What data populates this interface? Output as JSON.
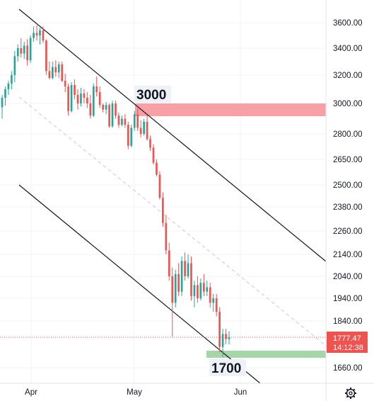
{
  "chart_data": {
    "type": "candlestick",
    "y_axis_ticks": [
      "3600.00",
      "3400.00",
      "3200.00",
      "3000.00",
      "2800.00",
      "2650.00",
      "2500.00",
      "2380.00",
      "2260.00",
      "2140.00",
      "2040.00",
      "1940.00",
      "1840.00",
      "1660.00"
    ],
    "x_axis_ticks": [
      "Apr",
      "May",
      "Jun"
    ],
    "annotations": {
      "resistance_label": "3000",
      "support_label": "1700"
    },
    "last_price": "1777.47",
    "countdown": "14:12:38",
    "colors": {
      "up": "#26a69a",
      "down": "#ef5350",
      "resistance_zone": "#f7a1a6",
      "support_zone": "#a5d6a7",
      "price_tag": "#ef5350"
    },
    "candles": [
      {
        "o": 2975,
        "h": 3060,
        "l": 2900,
        "c": 3040
      },
      {
        "o": 3040,
        "h": 3120,
        "l": 2985,
        "c": 3100
      },
      {
        "o": 3100,
        "h": 3160,
        "l": 3060,
        "c": 3140
      },
      {
        "o": 3140,
        "h": 3230,
        "l": 3100,
        "c": 3200
      },
      {
        "o": 3200,
        "h": 3380,
        "l": 3150,
        "c": 3340
      },
      {
        "o": 3340,
        "h": 3430,
        "l": 3300,
        "c": 3400
      },
      {
        "o": 3400,
        "h": 3480,
        "l": 3330,
        "c": 3360
      },
      {
        "o": 3360,
        "h": 3450,
        "l": 3320,
        "c": 3420
      },
      {
        "o": 3420,
        "h": 3470,
        "l": 3270,
        "c": 3310
      },
      {
        "o": 3310,
        "h": 3500,
        "l": 3290,
        "c": 3480
      },
      {
        "o": 3480,
        "h": 3570,
        "l": 3450,
        "c": 3520
      },
      {
        "o": 3520,
        "h": 3580,
        "l": 3460,
        "c": 3500
      },
      {
        "o": 3500,
        "h": 3560,
        "l": 3430,
        "c": 3540
      },
      {
        "o": 3540,
        "h": 3570,
        "l": 3440,
        "c": 3460
      },
      {
        "o": 3460,
        "h": 3470,
        "l": 3200,
        "c": 3230
      },
      {
        "o": 3230,
        "h": 3300,
        "l": 3170,
        "c": 3180
      },
      {
        "o": 3180,
        "h": 3300,
        "l": 3170,
        "c": 3260
      },
      {
        "o": 3260,
        "h": 3310,
        "l": 3190,
        "c": 3220
      },
      {
        "o": 3220,
        "h": 3300,
        "l": 3180,
        "c": 3280
      },
      {
        "o": 3280,
        "h": 3300,
        "l": 3150,
        "c": 3160
      },
      {
        "o": 3160,
        "h": 3210,
        "l": 3080,
        "c": 3120
      },
      {
        "o": 3120,
        "h": 3140,
        "l": 2920,
        "c": 2950
      },
      {
        "o": 2950,
        "h": 3150,
        "l": 2940,
        "c": 3130
      },
      {
        "o": 3130,
        "h": 3170,
        "l": 3030,
        "c": 3060
      },
      {
        "o": 3060,
        "h": 3100,
        "l": 2960,
        "c": 3000
      },
      {
        "o": 3000,
        "h": 3110,
        "l": 2980,
        "c": 3070
      },
      {
        "o": 3070,
        "h": 3100,
        "l": 3000,
        "c": 3040
      },
      {
        "o": 3040,
        "h": 3080,
        "l": 2970,
        "c": 3000
      },
      {
        "o": 3000,
        "h": 3060,
        "l": 2900,
        "c": 2920
      },
      {
        "o": 2920,
        "h": 3140,
        "l": 2910,
        "c": 3120
      },
      {
        "o": 3120,
        "h": 3190,
        "l": 3050,
        "c": 3080
      },
      {
        "o": 3080,
        "h": 3120,
        "l": 2970,
        "c": 2990
      },
      {
        "o": 2990,
        "h": 3000,
        "l": 2940,
        "c": 2960
      },
      {
        "o": 2960,
        "h": 3010,
        "l": 2930,
        "c": 2990
      },
      {
        "o": 2990,
        "h": 3000,
        "l": 2840,
        "c": 2850
      },
      {
        "o": 2850,
        "h": 3020,
        "l": 2840,
        "c": 3000
      },
      {
        "o": 3000,
        "h": 3020,
        "l": 2900,
        "c": 2920
      },
      {
        "o": 2920,
        "h": 2940,
        "l": 2840,
        "c": 2860
      },
      {
        "o": 2860,
        "h": 2920,
        "l": 2850,
        "c": 2900
      },
      {
        "o": 2900,
        "h": 2930,
        "l": 2840,
        "c": 2860
      },
      {
        "o": 2860,
        "h": 2880,
        "l": 2710,
        "c": 2730
      },
      {
        "o": 2730,
        "h": 2860,
        "l": 2720,
        "c": 2840
      },
      {
        "o": 2840,
        "h": 2950,
        "l": 2820,
        "c": 2930
      },
      {
        "o": 2930,
        "h": 2970,
        "l": 2820,
        "c": 2840
      },
      {
        "o": 2840,
        "h": 2890,
        "l": 2780,
        "c": 2800
      },
      {
        "o": 2800,
        "h": 2900,
        "l": 2790,
        "c": 2880
      },
      {
        "o": 2880,
        "h": 2920,
        "l": 2760,
        "c": 2770
      },
      {
        "o": 2770,
        "h": 2790,
        "l": 2700,
        "c": 2720
      },
      {
        "o": 2720,
        "h": 2740,
        "l": 2620,
        "c": 2630
      },
      {
        "o": 2630,
        "h": 2650,
        "l": 2550,
        "c": 2560
      },
      {
        "o": 2560,
        "h": 2580,
        "l": 2420,
        "c": 2430
      },
      {
        "o": 2430,
        "h": 2460,
        "l": 2280,
        "c": 2300
      },
      {
        "o": 2300,
        "h": 2340,
        "l": 2140,
        "c": 2160
      },
      {
        "o": 2160,
        "h": 2200,
        "l": 2020,
        "c": 2040
      },
      {
        "o": 2040,
        "h": 2080,
        "l": 1780,
        "c": 1920
      },
      {
        "o": 1920,
        "h": 2070,
        "l": 1900,
        "c": 2050
      },
      {
        "o": 2050,
        "h": 2100,
        "l": 1950,
        "c": 1970
      },
      {
        "o": 1970,
        "h": 2130,
        "l": 1950,
        "c": 2110
      },
      {
        "o": 2110,
        "h": 2150,
        "l": 2020,
        "c": 2040
      },
      {
        "o": 2040,
        "h": 2140,
        "l": 2030,
        "c": 2100
      },
      {
        "o": 2100,
        "h": 2130,
        "l": 1930,
        "c": 1950
      },
      {
        "o": 1950,
        "h": 2020,
        "l": 1900,
        "c": 2000
      },
      {
        "o": 2000,
        "h": 2040,
        "l": 1920,
        "c": 1940
      },
      {
        "o": 1940,
        "h": 2030,
        "l": 1930,
        "c": 2010
      },
      {
        "o": 2010,
        "h": 2050,
        "l": 1950,
        "c": 1970
      },
      {
        "o": 1970,
        "h": 2020,
        "l": 1950,
        "c": 1990
      },
      {
        "o": 1990,
        "h": 2010,
        "l": 1900,
        "c": 1920
      },
      {
        "o": 1920,
        "h": 1960,
        "l": 1880,
        "c": 1940
      },
      {
        "o": 1940,
        "h": 1960,
        "l": 1860,
        "c": 1880
      },
      {
        "o": 1880,
        "h": 1900,
        "l": 1720,
        "c": 1740
      },
      {
        "o": 1740,
        "h": 1810,
        "l": 1700,
        "c": 1790
      },
      {
        "o": 1790,
        "h": 1810,
        "l": 1750,
        "c": 1770
      },
      {
        "o": 1770,
        "h": 1800,
        "l": 1750,
        "c": 1777.47
      }
    ]
  }
}
